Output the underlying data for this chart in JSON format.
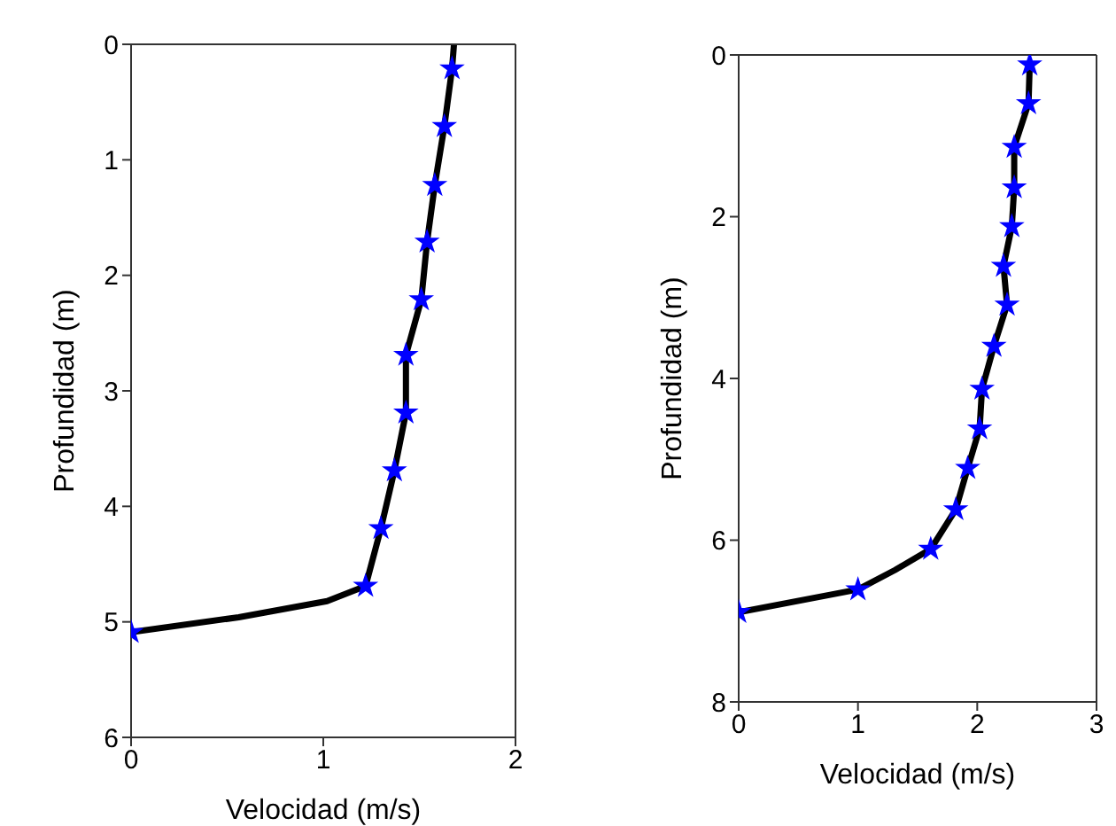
{
  "chart_data": [
    {
      "type": "line",
      "xlabel": "Velocidad (m/s)",
      "ylabel": "Profundidad (m)",
      "xlim": [
        0,
        2
      ],
      "xticks": [
        0,
        1,
        2
      ],
      "ylim": [
        6,
        0
      ],
      "yticks": [
        0,
        1,
        2,
        3,
        4,
        5,
        6
      ],
      "grid": false,
      "line_style": "solid",
      "series": [
        {
          "color": "#000000",
          "x": [
            1.68,
            1.67,
            1.63,
            1.58,
            1.54,
            1.51,
            1.43,
            1.43,
            1.37,
            1.3,
            1.22,
            1.02,
            0.56,
            0
          ],
          "values": [
            0,
            0.21,
            0.71,
            1.22,
            1.71,
            2.21,
            2.69,
            3.19,
            3.69,
            4.19,
            4.69,
            4.82,
            4.96,
            5.09
          ]
        },
        {
          "type": "scatter",
          "color": "#0000ff",
          "marker": "star",
          "x": [
            1.67,
            1.63,
            1.58,
            1.54,
            1.51,
            1.43,
            1.43,
            1.37,
            1.3,
            1.22,
            0
          ],
          "values": [
            0.21,
            0.71,
            1.22,
            1.71,
            2.21,
            2.69,
            3.19,
            3.69,
            4.19,
            4.69,
            5.09
          ]
        }
      ]
    },
    {
      "type": "line",
      "xlabel": "Velocidad (m/s)",
      "ylabel": "Profundidad (m)",
      "xlim": [
        0,
        3
      ],
      "xticks": [
        0,
        1,
        2,
        3
      ],
      "ylim": [
        8,
        0
      ],
      "yticks": [
        0,
        2,
        4,
        6,
        8
      ],
      "grid": false,
      "line_style": "solid",
      "series": [
        {
          "color": "#000000",
          "x": [
            2.44,
            2.43,
            2.31,
            2.31,
            2.29,
            2.22,
            2.25,
            2.14,
            2.04,
            2.02,
            1.92,
            1.82,
            1.61,
            1.31,
            1,
            0
          ],
          "values": [
            0.12,
            0.6,
            1.14,
            1.64,
            2.12,
            2.61,
            3.09,
            3.6,
            4.13,
            4.62,
            5.11,
            5.62,
            6.11,
            6.37,
            6.61,
            6.89
          ]
        },
        {
          "type": "scatter",
          "color": "#0000ff",
          "marker": "star",
          "x": [
            2.44,
            2.43,
            2.31,
            2.31,
            2.29,
            2.22,
            2.25,
            2.14,
            2.04,
            2.02,
            1.92,
            1.82,
            1.61,
            1,
            0
          ],
          "values": [
            0.12,
            0.6,
            1.14,
            1.64,
            2.12,
            2.61,
            3.09,
            3.6,
            4.13,
            4.62,
            5.11,
            5.62,
            6.11,
            6.61,
            6.89
          ]
        }
      ]
    }
  ]
}
